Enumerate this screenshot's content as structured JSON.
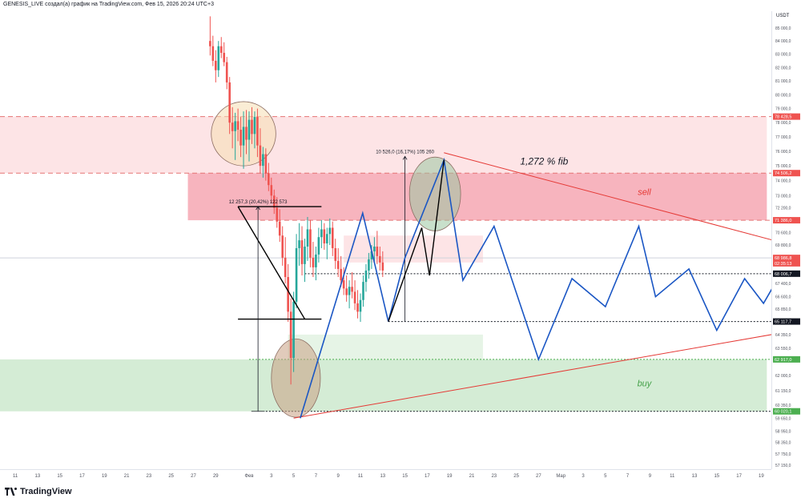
{
  "header": {
    "title": "GENESIS_LIVE создал(а) график на TradingView.com, Фев 15, 2026 20:24 UTC+3"
  },
  "footer": {
    "brand": "TradingView"
  },
  "colors": {
    "sell_zone": "#f2a3af",
    "buy_zone": "#c8e6c9",
    "projection": "#1a56c4",
    "trendline": "#e53935",
    "candle_up": "#26a69a",
    "candle_down": "#ef5350"
  },
  "chart_data": {
    "type": "candlestick",
    "symbol_quote": "USDT",
    "y_scale": "log",
    "ylim": [
      56950,
      86300
    ],
    "y_ticks": [
      "85 000,0",
      "84 000,0",
      "83 000,0",
      "82 000,0",
      "81 000,0",
      "80 000,0",
      "79 000,0",
      "78 000,0",
      "77 000,0",
      "76 000,0",
      "75 000,0",
      "74 000,0",
      "73 000,0",
      "72 200,0",
      "70 600,0",
      "69 800,0",
      "67 400,0",
      "66 600,0",
      "65 850,0",
      "64 350,0",
      "63 550,0",
      "62 000,0",
      "61 150,0",
      "60 350,0",
      "59 650,0",
      "58 950,0",
      "58 350,0",
      "57 750,0",
      "57 150,0"
    ],
    "y_tick_values": [
      85000,
      84000,
      83000,
      82000,
      81000,
      80000,
      79000,
      78000,
      77000,
      76000,
      75000,
      74000,
      73000,
      72200,
      70600,
      69800,
      67400,
      66600,
      65850,
      64350,
      63550,
      62000,
      61150,
      60350,
      59650,
      58950,
      58350,
      57750,
      57150
    ],
    "price_labels": [
      {
        "text": "78 428,5",
        "value": 78428.5,
        "color": "#ef5350"
      },
      {
        "text": "74 506,2",
        "value": 74506.2,
        "color": "#ef5350"
      },
      {
        "text": "71 386,0",
        "value": 71386,
        "color": "#ef5350"
      },
      {
        "text": "68 986,8",
        "value": 68986.8,
        "color": "#ef5350"
      },
      {
        "text": "02:35:13",
        "value": 68650,
        "color": "#ef5350"
      },
      {
        "text": "68 006,7",
        "value": 68006.7,
        "color": "#131722"
      },
      {
        "text": "65 117,7",
        "value": 65117.7,
        "color": "#131722"
      },
      {
        "text": "62 917,0",
        "value": 62917,
        "color": "#4caf50"
      },
      {
        "text": "60 020,1",
        "value": 60020.1,
        "color": "#4caf50"
      }
    ],
    "x_ticks": [
      "11",
      "13",
      "15",
      "17",
      "19",
      "21",
      "23",
      "25",
      "27",
      "29",
      "Фев",
      "3",
      "5",
      "7",
      "9",
      "11",
      "13",
      "15",
      "17",
      "19",
      "21",
      "23",
      "25",
      "27",
      "Мар",
      "3",
      "5",
      "7",
      "9",
      "11",
      "13",
      "15",
      "17",
      "19"
    ],
    "x_tick_days": [
      -21,
      -19,
      -17,
      -15,
      -13,
      -11,
      -9,
      -7,
      -5,
      -3,
      0,
      2,
      4,
      6,
      8,
      10,
      12,
      14,
      16,
      18,
      20,
      22,
      24,
      26,
      28,
      30,
      32,
      34,
      36,
      38,
      40,
      42,
      44,
      46
    ],
    "zones": [
      {
        "label": "",
        "day_from": -30,
        "day_to": 46.5,
        "top": 78428.5,
        "bottom": 74506.2,
        "fill": "#fde4e6"
      },
      {
        "label": "sell",
        "day_from": -5.5,
        "day_to": 46.5,
        "top": 74506.2,
        "bottom": 71386,
        "fill": "#f7b4be"
      },
      {
        "label": "buy",
        "day_from": -30,
        "day_to": 46.5,
        "top": 62917,
        "bottom": 60020.1,
        "fill": "#d4ecd5"
      },
      {
        "label": "",
        "day_from": 3.5,
        "day_to": 21,
        "top": 64350,
        "bottom": 62917,
        "fill": "#e6f4e6"
      },
      {
        "label": "",
        "day_from": 8.5,
        "day_to": 21,
        "top": 70400,
        "bottom": 68700,
        "fill": "#fde4e6"
      }
    ],
    "levels": [
      {
        "value": 78428.5,
        "day_from": -30,
        "style": "dashed",
        "color": "#e57373"
      },
      {
        "value": 74506.2,
        "day_from": -30,
        "style": "dashed",
        "color": "#e57373"
      },
      {
        "value": 71386,
        "day_from": 1,
        "style": "dashed",
        "color": "#e57373"
      },
      {
        "value": 68986.8,
        "day_from": -30,
        "style": "solid",
        "color": "#cfd3dc"
      },
      {
        "value": 68006.7,
        "day_from": 5,
        "style": "dotted",
        "color": "#131722"
      },
      {
        "value": 65117.7,
        "day_from": 12.5,
        "style": "dotted",
        "color": "#131722"
      },
      {
        "value": 62917,
        "day_from": 0,
        "style": "dotted",
        "color": "#4caf50"
      },
      {
        "value": 60020.1,
        "day_from": 1.5,
        "style": "dotted",
        "color": "#131722"
      }
    ],
    "candles": [
      {
        "d": -3.5,
        "o": 84000,
        "h": 85900,
        "l": 82900,
        "c": 83600
      },
      {
        "d": -3.25,
        "o": 83600,
        "h": 84400,
        "l": 82100,
        "c": 82500
      },
      {
        "d": -3.0,
        "o": 82500,
        "h": 83300,
        "l": 80900,
        "c": 81800
      },
      {
        "d": -2.75,
        "o": 81800,
        "h": 84000,
        "l": 81300,
        "c": 83600
      },
      {
        "d": -2.5,
        "o": 83600,
        "h": 84300,
        "l": 82700,
        "c": 83100
      },
      {
        "d": -2.25,
        "o": 83100,
        "h": 83900,
        "l": 82100,
        "c": 82400
      },
      {
        "d": -2.0,
        "o": 82400,
        "h": 82800,
        "l": 80400,
        "c": 80900
      },
      {
        "d": -1.75,
        "o": 80900,
        "h": 81300,
        "l": 77200,
        "c": 78000
      },
      {
        "d": -1.5,
        "o": 78000,
        "h": 79100,
        "l": 76200,
        "c": 77400
      },
      {
        "d": -1.25,
        "o": 77400,
        "h": 78700,
        "l": 75400,
        "c": 78100
      },
      {
        "d": -1.0,
        "o": 78100,
        "h": 79000,
        "l": 76700,
        "c": 77500
      },
      {
        "d": -0.75,
        "o": 77500,
        "h": 78400,
        "l": 75600,
        "c": 76400
      },
      {
        "d": -0.5,
        "o": 76400,
        "h": 78800,
        "l": 74800,
        "c": 77700
      },
      {
        "d": -0.25,
        "o": 77700,
        "h": 78900,
        "l": 75800,
        "c": 76800
      },
      {
        "d": 0.0,
        "o": 76800,
        "h": 78800,
        "l": 75300,
        "c": 78200
      },
      {
        "d": 0.25,
        "o": 78200,
        "h": 79100,
        "l": 76500,
        "c": 77200
      },
      {
        "d": 0.5,
        "o": 77200,
        "h": 78800,
        "l": 76200,
        "c": 78400
      },
      {
        "d": 0.75,
        "o": 78400,
        "h": 79000,
        "l": 75600,
        "c": 76400
      },
      {
        "d": 1.0,
        "o": 76400,
        "h": 77600,
        "l": 74500,
        "c": 75000
      },
      {
        "d": 1.25,
        "o": 75000,
        "h": 76300,
        "l": 74200,
        "c": 75800
      },
      {
        "d": 1.5,
        "o": 75800,
        "h": 76200,
        "l": 74000,
        "c": 74500
      },
      {
        "d": 1.75,
        "o": 74500,
        "h": 75200,
        "l": 73300,
        "c": 73700
      },
      {
        "d": 2.0,
        "o": 73700,
        "h": 74200,
        "l": 72500,
        "c": 73000
      },
      {
        "d": 2.25,
        "o": 73000,
        "h": 73400,
        "l": 71800,
        "c": 72200
      },
      {
        "d": 2.5,
        "o": 72200,
        "h": 72900,
        "l": 70900,
        "c": 71300
      },
      {
        "d": 2.75,
        "o": 71300,
        "h": 72100,
        "l": 70000,
        "c": 70400
      },
      {
        "d": 3.0,
        "o": 70400,
        "h": 71000,
        "l": 68500,
        "c": 69000
      },
      {
        "d": 3.25,
        "o": 69000,
        "h": 70300,
        "l": 67400,
        "c": 67800
      },
      {
        "d": 3.5,
        "o": 67800,
        "h": 68600,
        "l": 65100,
        "c": 65700
      },
      {
        "d": 3.75,
        "o": 65700,
        "h": 66500,
        "l": 61500,
        "c": 63000
      },
      {
        "d": 4.0,
        "o": 63000,
        "h": 66900,
        "l": 62200,
        "c": 66300
      },
      {
        "d": 4.25,
        "o": 66300,
        "h": 70500,
        "l": 65900,
        "c": 69600
      },
      {
        "d": 4.5,
        "o": 69600,
        "h": 71200,
        "l": 68500,
        "c": 70100
      },
      {
        "d": 4.75,
        "o": 70100,
        "h": 71000,
        "l": 67900,
        "c": 68600
      },
      {
        "d": 5.0,
        "o": 68600,
        "h": 70200,
        "l": 67500,
        "c": 69700
      },
      {
        "d": 5.25,
        "o": 69700,
        "h": 71600,
        "l": 68800,
        "c": 70800
      },
      {
        "d": 5.5,
        "o": 70800,
        "h": 71400,
        "l": 68400,
        "c": 69000
      },
      {
        "d": 5.75,
        "o": 69000,
        "h": 70000,
        "l": 67800,
        "c": 68400
      },
      {
        "d": 6.0,
        "o": 68400,
        "h": 69700,
        "l": 67600,
        "c": 69200
      },
      {
        "d": 6.25,
        "o": 69200,
        "h": 70900,
        "l": 68700,
        "c": 70300
      },
      {
        "d": 6.5,
        "o": 70300,
        "h": 71400,
        "l": 69600,
        "c": 70800
      },
      {
        "d": 6.75,
        "o": 70800,
        "h": 71200,
        "l": 69500,
        "c": 69900
      },
      {
        "d": 7.0,
        "o": 69900,
        "h": 70900,
        "l": 68900,
        "c": 70500
      },
      {
        "d": 7.25,
        "o": 70500,
        "h": 71500,
        "l": 69800,
        "c": 70900
      },
      {
        "d": 7.5,
        "o": 70900,
        "h": 71300,
        "l": 69100,
        "c": 69600
      },
      {
        "d": 7.75,
        "o": 69600,
        "h": 70200,
        "l": 68300,
        "c": 68800
      },
      {
        "d": 8.0,
        "o": 68800,
        "h": 69600,
        "l": 67800,
        "c": 68300
      },
      {
        "d": 8.25,
        "o": 68300,
        "h": 69100,
        "l": 67200,
        "c": 67600
      },
      {
        "d": 8.5,
        "o": 67600,
        "h": 68400,
        "l": 66700,
        "c": 67100
      },
      {
        "d": 8.75,
        "o": 67100,
        "h": 67900,
        "l": 66300,
        "c": 66700
      },
      {
        "d": 9.0,
        "o": 66700,
        "h": 67600,
        "l": 65900,
        "c": 67200
      },
      {
        "d": 9.25,
        "o": 67200,
        "h": 68100,
        "l": 66500,
        "c": 66900
      },
      {
        "d": 9.5,
        "o": 66900,
        "h": 67600,
        "l": 65800,
        "c": 66200
      },
      {
        "d": 9.75,
        "o": 66200,
        "h": 67000,
        "l": 65300,
        "c": 65700
      },
      {
        "d": 10.0,
        "o": 65700,
        "h": 66800,
        "l": 65100,
        "c": 66400
      },
      {
        "d": 10.25,
        "o": 66400,
        "h": 67900,
        "l": 66000,
        "c": 67500
      },
      {
        "d": 10.5,
        "o": 67500,
        "h": 68600,
        "l": 66900,
        "c": 68200
      },
      {
        "d": 10.75,
        "o": 68200,
        "h": 69300,
        "l": 67700,
        "c": 68900
      },
      {
        "d": 11.0,
        "o": 68900,
        "h": 69800,
        "l": 68300,
        "c": 69400
      },
      {
        "d": 11.25,
        "o": 69400,
        "h": 70300,
        "l": 68800,
        "c": 69700
      },
      {
        "d": 11.5,
        "o": 69700,
        "h": 70700,
        "l": 68600,
        "c": 69100
      },
      {
        "d": 11.75,
        "o": 69100,
        "h": 69700,
        "l": 68200,
        "c": 68700
      },
      {
        "d": 12.0,
        "o": 68700,
        "h": 69400,
        "l": 67800,
        "c": 68200
      }
    ],
    "projection_path": [
      {
        "d": 4.6,
        "v": 59650
      },
      {
        "d": 10.2,
        "v": 71850
      },
      {
        "d": 12.5,
        "v": 65117.7
      },
      {
        "d": 14.0,
        "v": 69000
      },
      {
        "d": 17.5,
        "v": 75400
      },
      {
        "d": 19.2,
        "v": 67600
      },
      {
        "d": 22.0,
        "v": 71000
      },
      {
        "d": 26.0,
        "v": 62917
      },
      {
        "d": 29.0,
        "v": 67700
      },
      {
        "d": 32.0,
        "v": 66000
      },
      {
        "d": 35.0,
        "v": 71000
      },
      {
        "d": 36.5,
        "v": 66600
      },
      {
        "d": 39.5,
        "v": 68300
      },
      {
        "d": 42.0,
        "v": 64600
      },
      {
        "d": 44.5,
        "v": 67700
      },
      {
        "d": 46.2,
        "v": 66200
      },
      {
        "d": 48.5,
        "v": 68900
      },
      {
        "d": 49.8,
        "v": 65600
      }
    ],
    "projection_black": [
      {
        "d": 12.5,
        "v": 65117.7
      },
      {
        "d": 15.5,
        "v": 70900
      },
      {
        "d": 16.2,
        "v": 67900
      },
      {
        "d": 17.5,
        "v": 75400
      }
    ],
    "trendlines": [
      {
        "from": {
          "d": 4.0,
          "v": 59650
        },
        "to": {
          "d": 50,
          "v": 64700
        }
      },
      {
        "from": {
          "d": 17.5,
          "v": 75900
        },
        "to": {
          "d": 50,
          "v": 69550
        }
      }
    ],
    "measures": [
      {
        "label": "12 257,3 (20,42%) 122 573",
        "d": 0.8,
        "from": 60020,
        "to": 72277,
        "tick_width_days": 1.2
      },
      {
        "label": "10 526,0 (16,17%) 105 260",
        "d": 14.0,
        "from": 65117,
        "to": 75643,
        "tick_width_days": 0
      }
    ],
    "triangle": {
      "top": 72277,
      "bottom": 65260,
      "d_left": -1.0,
      "d_right": 3.5,
      "d_tip": 5.0
    },
    "ellipses": [
      {
        "cd": -0.5,
        "cv": 77300,
        "rd": 2.9,
        "rv_top": 79500,
        "rv_bottom": 75000,
        "fill": "#f5deb3"
      },
      {
        "cd": 4.2,
        "cv": 62000,
        "rd": 2.2,
        "rv_top": 64100,
        "rv_bottom": 59700,
        "fill": "#c9a084"
      },
      {
        "cd": 16.7,
        "cv": 73000,
        "rd": 2.3,
        "rv_top": 75600,
        "rv_bottom": 70700,
        "fill": "#9bc7a0"
      }
    ],
    "annotations": [
      {
        "text": "1,272 % fib",
        "d": 26.5,
        "v": 75100,
        "color": "#131722",
        "style": "italic"
      },
      {
        "text": "sell",
        "d": 35.5,
        "v": 73050,
        "color": "#e53935",
        "style": "italic"
      },
      {
        "text": "buy",
        "d": 35.5,
        "v": 61400,
        "color": "#43a047",
        "style": "italic"
      }
    ]
  }
}
